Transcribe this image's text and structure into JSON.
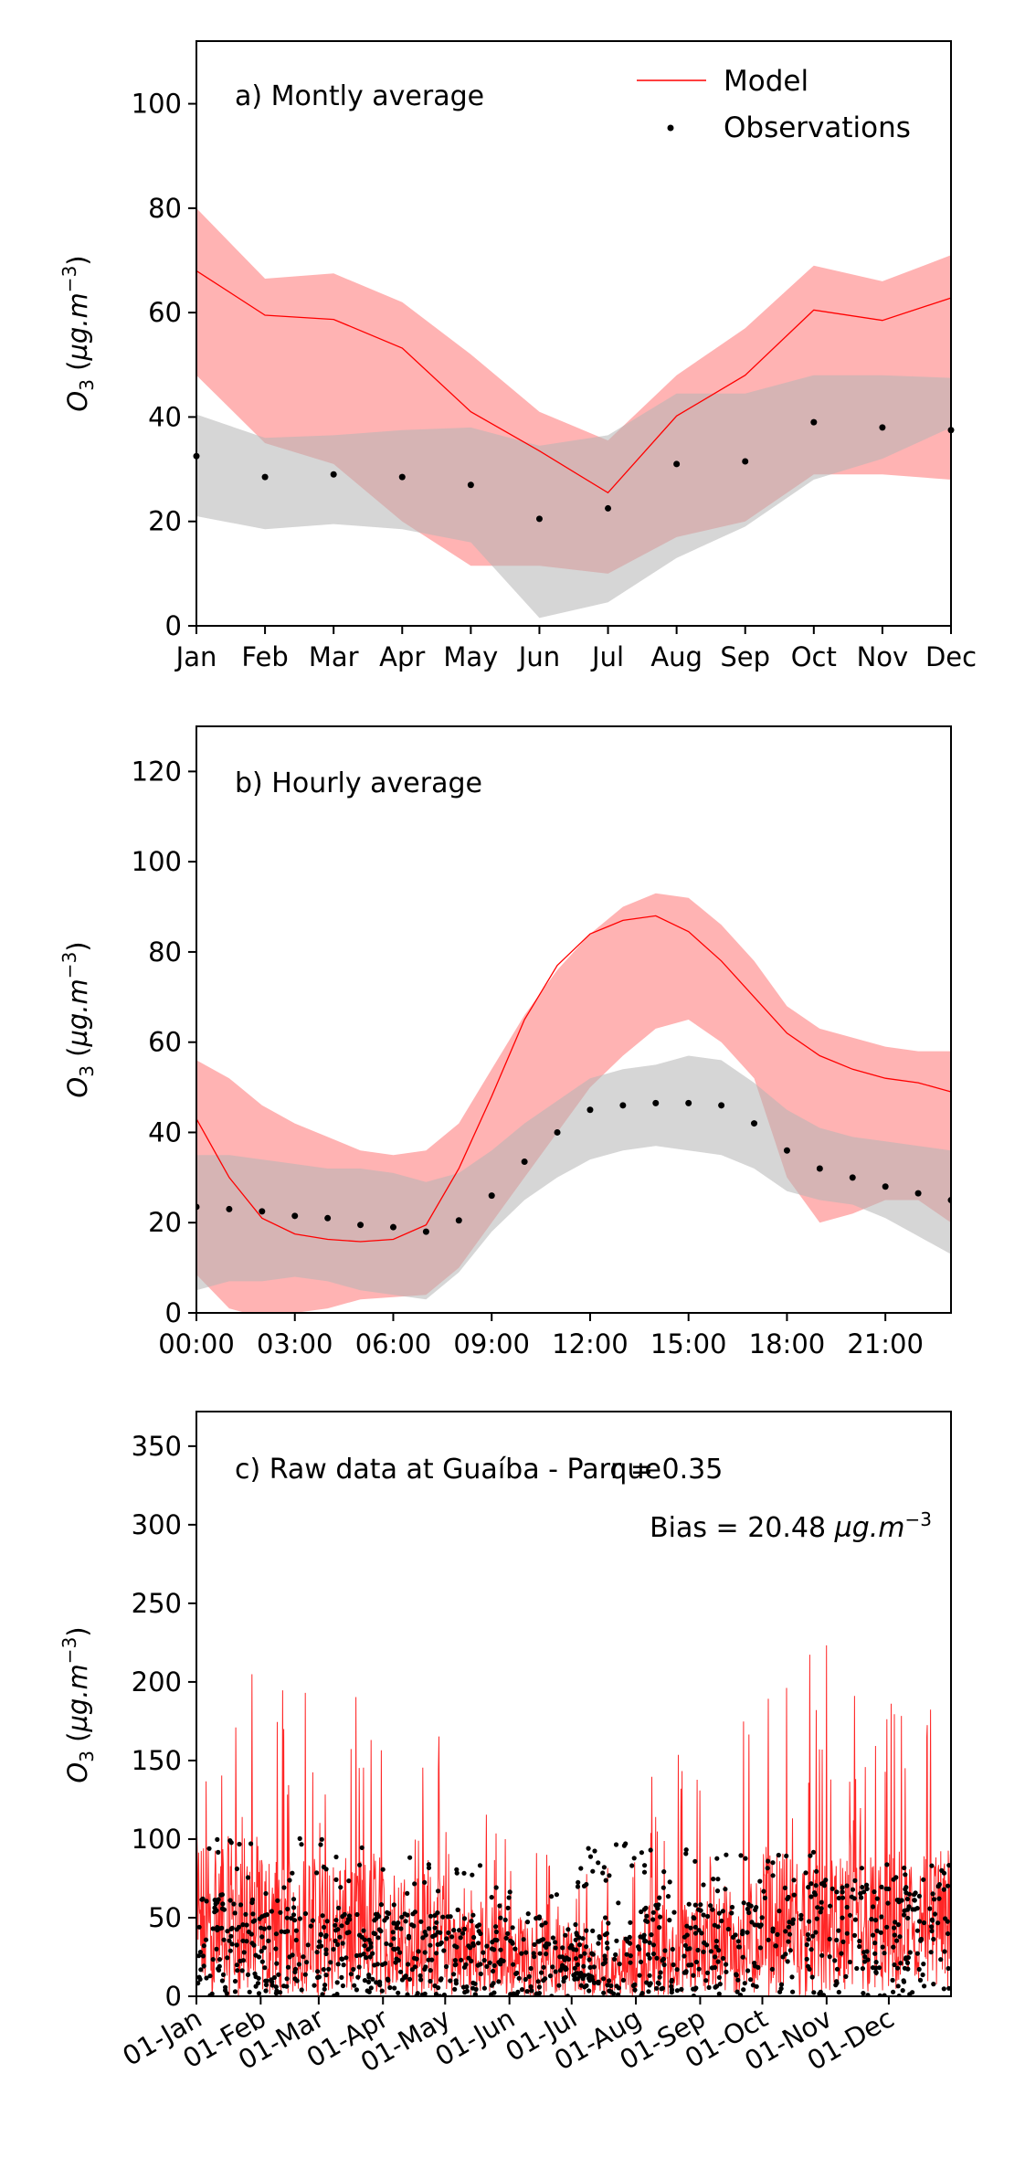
{
  "chart_data": [
    {
      "type": "line",
      "title": "a) Montly average",
      "ylabel": "O₃ (µg.m⁻³)",
      "ylim": [
        0,
        112
      ],
      "yticks": [
        0,
        20,
        40,
        60,
        80,
        100
      ],
      "grid": false,
      "legend_position": "top-right",
      "categories": [
        "Jan",
        "Feb",
        "Mar",
        "Apr",
        "May",
        "Jun",
        "Jul",
        "Aug",
        "Sep",
        "Oct",
        "Nov",
        "Dec"
      ],
      "legend": {
        "model_label": "Model",
        "obs_label": "Observations"
      },
      "series": [
        {
          "name": "Model",
          "kind": "line",
          "color": "#ff0000",
          "values": [
            68,
            59.5,
            58.7,
            53.2,
            41,
            33.5,
            25.5,
            40.2,
            48,
            60.5,
            58.5,
            62.8
          ],
          "band_lower": [
            48,
            35,
            31,
            20,
            11.5,
            11.5,
            10,
            17,
            20,
            29,
            29,
            28
          ],
          "band_upper": [
            80,
            66.5,
            67.5,
            62,
            52,
            41,
            35.5,
            48,
            57,
            69,
            66,
            71
          ],
          "band_color": "#ff8080"
        },
        {
          "name": "Observations",
          "kind": "scatter",
          "color": "#000000",
          "values": [
            32.5,
            28.5,
            29,
            28.5,
            27,
            20.5,
            22.5,
            31,
            31.5,
            39,
            38,
            37.5
          ],
          "band_lower": [
            21,
            18.5,
            19.5,
            18.5,
            16,
            1.5,
            4.5,
            13,
            19,
            28,
            32,
            38
          ],
          "band_upper": [
            40.5,
            36,
            36.5,
            37.5,
            38,
            34.5,
            36.5,
            44.5,
            44.5,
            48,
            48,
            47.5
          ],
          "band_color": "#b4b4b4"
        }
      ]
    },
    {
      "type": "line",
      "title": "b) Hourly average",
      "ylabel": "O₃ (µg.m⁻³)",
      "ylim": [
        0,
        130
      ],
      "yticks": [
        0,
        20,
        40,
        60,
        80,
        100,
        120
      ],
      "grid": false,
      "x": [
        0,
        1,
        2,
        3,
        4,
        5,
        6,
        7,
        8,
        9,
        10,
        11,
        12,
        13,
        14,
        15,
        16,
        17,
        18,
        19,
        20,
        21,
        22,
        23
      ],
      "xlim": [
        0,
        23
      ],
      "xticks": [
        0,
        3,
        6,
        9,
        12,
        15,
        18,
        21
      ],
      "xtick_labels": [
        "00:00",
        "03:00",
        "06:00",
        "09:00",
        "12:00",
        "15:00",
        "18:00",
        "21:00"
      ],
      "series": [
        {
          "name": "Model",
          "kind": "line",
          "color": "#ff0000",
          "values": [
            43,
            30,
            21,
            17.5,
            16.3,
            15.8,
            16.3,
            19.5,
            32,
            48,
            65,
            77,
            84,
            87,
            88,
            84.5,
            78,
            70,
            62,
            57,
            54,
            52,
            51,
            49
          ],
          "band_lower": [
            8.5,
            1,
            -1,
            0,
            1,
            3,
            3.5,
            4,
            10,
            20,
            30,
            40,
            50,
            57,
            63,
            65,
            60,
            52,
            30,
            20,
            22,
            25,
            25,
            20
          ],
          "band_upper": [
            56,
            52,
            46,
            42,
            39,
            36,
            35,
            36,
            42,
            54,
            66,
            76,
            84,
            90,
            93,
            92,
            86,
            78,
            68,
            63,
            61,
            59,
            58,
            58
          ],
          "band_color": "#ff8080"
        },
        {
          "name": "Observations",
          "kind": "scatter",
          "color": "#000000",
          "values": [
            23.5,
            23,
            22.5,
            21.5,
            21,
            19.5,
            19,
            18,
            20.5,
            26,
            33.5,
            40,
            45,
            46,
            46.5,
            46.5,
            46,
            42,
            36,
            32,
            30,
            28,
            26.5,
            25
          ],
          "band_lower": [
            5,
            7,
            7,
            8,
            7,
            5,
            4,
            3,
            9,
            18,
            25,
            30,
            34,
            36,
            37,
            36,
            35,
            32,
            27,
            25,
            24,
            21,
            17,
            13
          ],
          "band_upper": [
            35,
            35,
            34,
            33,
            32,
            32,
            31,
            29,
            31,
            36,
            42,
            47,
            52,
            54,
            55,
            57,
            56,
            51,
            45,
            41,
            39,
            38,
            37,
            36
          ],
          "band_color": "#b4b4b4"
        }
      ]
    },
    {
      "type": "line",
      "title": "c) Raw data at Guaíba - Parque",
      "ylabel": "O₃ (µg.m⁻³)",
      "ylim": [
        0,
        372
      ],
      "yticks": [
        0,
        50,
        100,
        150,
        200,
        250,
        300,
        350
      ],
      "grid": false,
      "xlim_days": [
        0,
        364
      ],
      "xtick_days": [
        0,
        31,
        59,
        90,
        120,
        151,
        181,
        212,
        243,
        273,
        304,
        334
      ],
      "xtick_labels": [
        "01-Jan",
        "01-Feb",
        "01-Mar",
        "01-Apr",
        "01-May",
        "01-Jun",
        "01-Jul",
        "01-Aug",
        "01-Sep",
        "01-Oct",
        "01-Nov",
        "01-Dec"
      ],
      "annotations": {
        "r_text": "r = 0.35",
        "bias_text": "Bias = 20.48 µg.m⁻³"
      },
      "series": [
        {
          "name": "Model",
          "kind": "line",
          "color": "#ff0000",
          "description_values": "hourly model values, monthly mean matching panel a",
          "monthly_mean": [
            68,
            59.5,
            58.7,
            53.2,
            41,
            33.5,
            25.5,
            40.2,
            48,
            60.5,
            58.5,
            62.8
          ],
          "typical_max": [
            215,
            230,
            195,
            170,
            120,
            100,
            90,
            160,
            200,
            225,
            215,
            190
          ]
        },
        {
          "name": "Observations",
          "kind": "scatter",
          "color": "#000000",
          "monthly_mean": [
            32.5,
            28.5,
            29,
            28.5,
            27,
            20.5,
            22.5,
            31,
            31.5,
            39,
            38,
            37.5
          ],
          "typical_max": [
            100,
            105,
            100,
            90,
            85,
            70,
            100,
            95,
            90,
            95,
            90,
            85
          ]
        }
      ]
    }
  ]
}
